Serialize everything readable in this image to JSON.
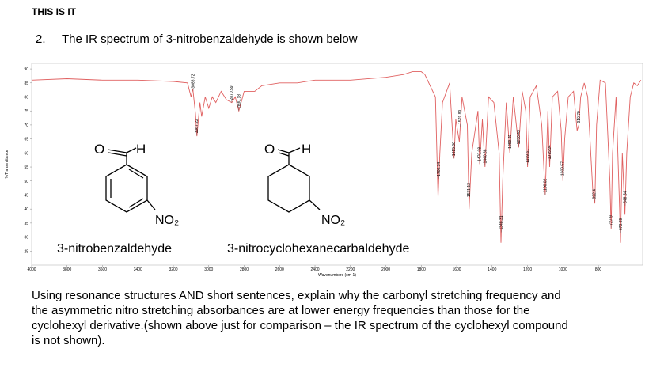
{
  "header": {
    "title": "THIS IS IT"
  },
  "question": {
    "number": "2.",
    "text": "The IR spectrum of 3-nitrobenzaldehyde is shown below"
  },
  "spectrum": {
    "type": "line",
    "x_label": "Wavenumbers (cm-1)",
    "y_label": "%Transmittance",
    "color": "#e06060",
    "xlim": [
      4000,
      550
    ],
    "ylim": [
      20,
      92
    ],
    "xticks": [
      4000,
      3800,
      3600,
      3400,
      3200,
      3000,
      2800,
      2600,
      2400,
      2200,
      2000,
      1800,
      1600,
      1400,
      1200,
      1000,
      800
    ],
    "yticks": [
      25,
      30,
      35,
      40,
      45,
      50,
      55,
      60,
      65,
      70,
      75,
      80,
      85,
      90
    ],
    "x": [
      4000,
      3800,
      3600,
      3400,
      3200,
      3120,
      3100,
      3090,
      3075,
      3067,
      3050,
      3040,
      3020,
      3000,
      2980,
      2960,
      2930,
      2900,
      2870,
      2850,
      2830,
      2800,
      2740,
      2700,
      2600,
      2500,
      2400,
      2200,
      2000,
      1900,
      1850,
      1800,
      1780,
      1720,
      1705,
      1695,
      1680,
      1640,
      1615,
      1605,
      1585,
      1570,
      1540,
      1530,
      1515,
      1480,
      1470,
      1455,
      1440,
      1420,
      1390,
      1360,
      1350,
      1340,
      1320,
      1300,
      1280,
      1250,
      1230,
      1210,
      1200,
      1185,
      1150,
      1120,
      1100,
      1085,
      1075,
      1060,
      1030,
      1010,
      1000,
      990,
      970,
      940,
      920,
      910,
      900,
      880,
      860,
      830,
      820,
      810,
      790,
      760,
      735,
      728,
      720,
      700,
      680,
      675,
      665,
      650,
      640,
      620,
      600,
      580,
      560
    ],
    "values": [
      86,
      86.5,
      86,
      86,
      85.5,
      85,
      80,
      83,
      74,
      66,
      78,
      73,
      80,
      76,
      80,
      78,
      82,
      79,
      78,
      80,
      75,
      82,
      82,
      84,
      85,
      85,
      86,
      86,
      87,
      88,
      89,
      89,
      88,
      80,
      44,
      60,
      78,
      85,
      58,
      72,
      64,
      80,
      70,
      40,
      60,
      75,
      56,
      72,
      55,
      80,
      78,
      60,
      28,
      50,
      78,
      60,
      80,
      62,
      82,
      75,
      55,
      80,
      84,
      70,
      45,
      75,
      55,
      80,
      82,
      68,
      50,
      65,
      80,
      82,
      68,
      70,
      80,
      85,
      80,
      45,
      42,
      70,
      86,
      85,
      50,
      33,
      60,
      80,
      40,
      28,
      60,
      38,
      60,
      80,
      85,
      84,
      86
    ],
    "peaks": [
      3088.72,
      3067.22,
      2870.59,
      2830.18,
      1700.74,
      1615.06,
      1579.89,
      1531.13,
      1470.08,
      1440.38,
      1348.31,
      1299.29,
      1250.43,
      1199.61,
      1100.02,
      1075.94,
      1000.57,
      910.79,
      822.4,
      727.9,
      673.89,
      648.54
    ]
  },
  "structures": [
    {
      "oxygen": "O",
      "hydrogen": "H",
      "nitro": "NO₂",
      "name": "3-nitrobenzaldehyde"
    },
    {
      "oxygen": "O",
      "hydrogen": "H",
      "nitro": "NO₂",
      "name": "3-nitrocyclohexanecarbaldehyde"
    }
  ],
  "body": [
    "Using resonance structures AND short sentences, explain why the carbonyl stretching frequency and",
    "the asymmetric nitro stretching absorbances are at lower energy frequencies than those for the",
    "cyclohexyl derivative.(shown above just for comparison – the IR spectrum of the cyclohexyl compound",
    "is not shown)."
  ]
}
